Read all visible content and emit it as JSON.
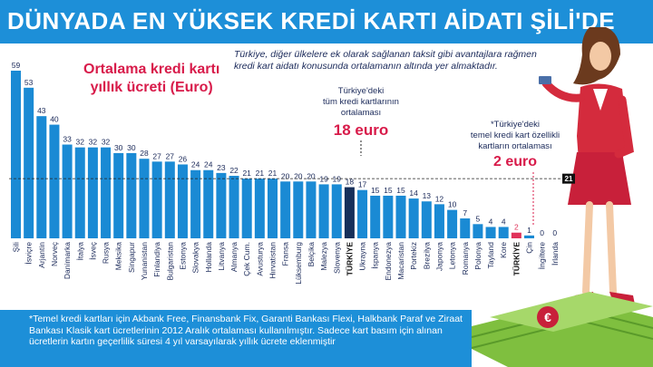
{
  "header": {
    "title": "DÜNYADA EN YÜKSEK KREDİ KARTI AİDATI ŞİLİ'DE"
  },
  "subtitle": {
    "line1": "Ortalama kredi kartı",
    "line2": "yıllık ücreti (Euro)"
  },
  "description": "Türkiye, diğer ülkelere ek olarak sağlanan taksit gibi avantajlara rağmen kredi kart aidatı konusunda ortalamanın altında yer almaktadır.",
  "callouts": {
    "all_cards": {
      "l1": "Türkiye'deki",
      "l2": "tüm kredi kartlarının",
      "l3": "ortalaması",
      "value": "18 euro"
    },
    "basic_cards": {
      "l1": "*Türkiye'deki",
      "l2": "temel kredi kart özellikli",
      "l3": "kartların ortalaması",
      "value": "2 euro"
    }
  },
  "footnote": "*Temel kredi kartları için Akbank Free, Finansbank Fix, Garanti Bankası Flexi, Halkbank Paraf ve Ziraat Bankası Klasik kart ücretlerinin 2012 Aralık ortalaması kullanılmıştır. Sadece kart basım için alınan ücretlerin kartın geçerlilik süresi 4 yıl varsayılarak yıllık ücrete eklenmiştir",
  "colors": {
    "banner": "#1d8fd8",
    "bar": "#1a8ad4",
    "highlight_bar": "#17305a",
    "basic_bar": "#e0335a",
    "subtitle": "#d81b4a",
    "callout_value": "#d81b4a",
    "average_line": "#222222"
  },
  "chart_data": {
    "type": "bar",
    "title": "Ortalama kredi kartı yıllık ücreti (Euro)",
    "categories": [
      "Şili",
      "İsviçre",
      "Arjantin",
      "Norveç",
      "Danimarka",
      "İtalya",
      "İsveç",
      "Rusya",
      "Meksika",
      "Singapur",
      "Yunanistan",
      "Finlandiya",
      "Bulgaristan",
      "Estonya",
      "Slovakya",
      "Hollanda",
      "Litvanya",
      "Almanya",
      "Çek Cum.",
      "Avusturya",
      "Hırvatistan",
      "Fransa",
      "Lüksemburg",
      "Belçika",
      "Malezya",
      "Slovenya",
      "TÜRKİYE",
      "Ukrayna",
      "İspanya",
      "Endonezya",
      "Macaristan",
      "Portekiz",
      "Brezilya",
      "Japonya",
      "Letonya",
      "Romanya",
      "Polonya",
      "Tayland",
      "Kore",
      "TÜRKİYE",
      "Çin",
      "İngiltere",
      "İrlanda"
    ],
    "values": [
      59,
      53,
      43,
      40,
      33,
      32,
      32,
      32,
      30,
      30,
      28,
      27,
      27,
      26,
      24,
      24,
      23,
      22,
      21,
      21,
      21,
      20,
      20,
      20,
      19,
      19,
      18,
      17,
      15,
      15,
      15,
      14,
      13,
      12,
      10,
      7,
      5,
      4,
      4,
      2,
      1,
      0,
      0
    ],
    "labels": [
      "59",
      "53",
      "43",
      "40",
      "33",
      "32",
      "32",
      "32",
      "30",
      "30",
      "28",
      "27",
      "27",
      "26",
      "24",
      "24",
      "23",
      "22",
      "21",
      "21",
      "21",
      "20",
      "20",
      "20",
      "19",
      "19",
      "18",
      "17",
      "15",
      "15",
      "15",
      "14",
      "13",
      "12",
      "10",
      "7",
      "5",
      "4",
      "4",
      "2",
      "1",
      "0",
      "0"
    ],
    "highlight_index": 26,
    "basic_index": 39,
    "average_value": 21,
    "average_label": "21",
    "ylim": [
      0,
      59
    ]
  }
}
